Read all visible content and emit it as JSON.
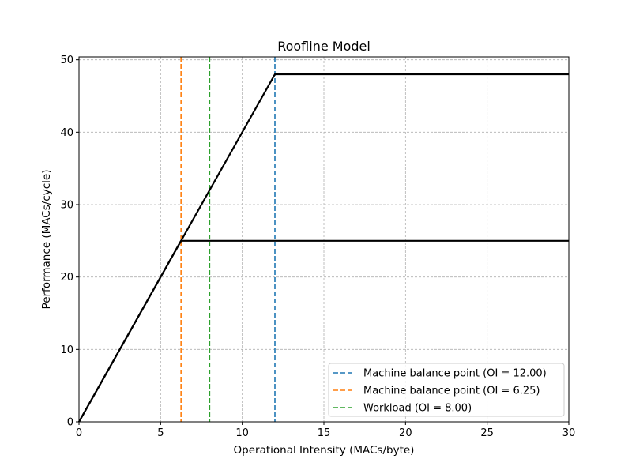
{
  "chart_data": {
    "type": "line",
    "title": "Roofline Model",
    "xlabel": "Operational Intensity (MACs/byte)",
    "ylabel": "Performance (MACs/cycle)",
    "xlim": [
      0,
      30
    ],
    "ylim": [
      0,
      50.4
    ],
    "xticks": [
      0,
      5,
      10,
      15,
      20,
      25,
      30
    ],
    "yticks": [
      0,
      10,
      20,
      30,
      40,
      50
    ],
    "grid": true,
    "legend_position": "lower-right",
    "series": [
      {
        "color": "#000000",
        "style": "solid",
        "x": [
          0,
          12,
          30
        ],
        "y": [
          0,
          48,
          48
        ]
      },
      {
        "color": "#000000",
        "style": "solid",
        "x": [
          0,
          6.25,
          30
        ],
        "y": [
          0,
          25,
          25
        ]
      }
    ],
    "vlines": [
      {
        "name": "Machine balance point (OI = 12.00)",
        "x": 12.0,
        "color": "#1f77b4",
        "style": "dashed"
      },
      {
        "name": "Machine balance point (OI = 6.25)",
        "x": 6.25,
        "color": "#ff7f0e",
        "style": "dashed"
      },
      {
        "name": "Workload (OI = 8.00)",
        "x": 8.0,
        "color": "#2ca02c",
        "style": "dashed"
      }
    ]
  }
}
